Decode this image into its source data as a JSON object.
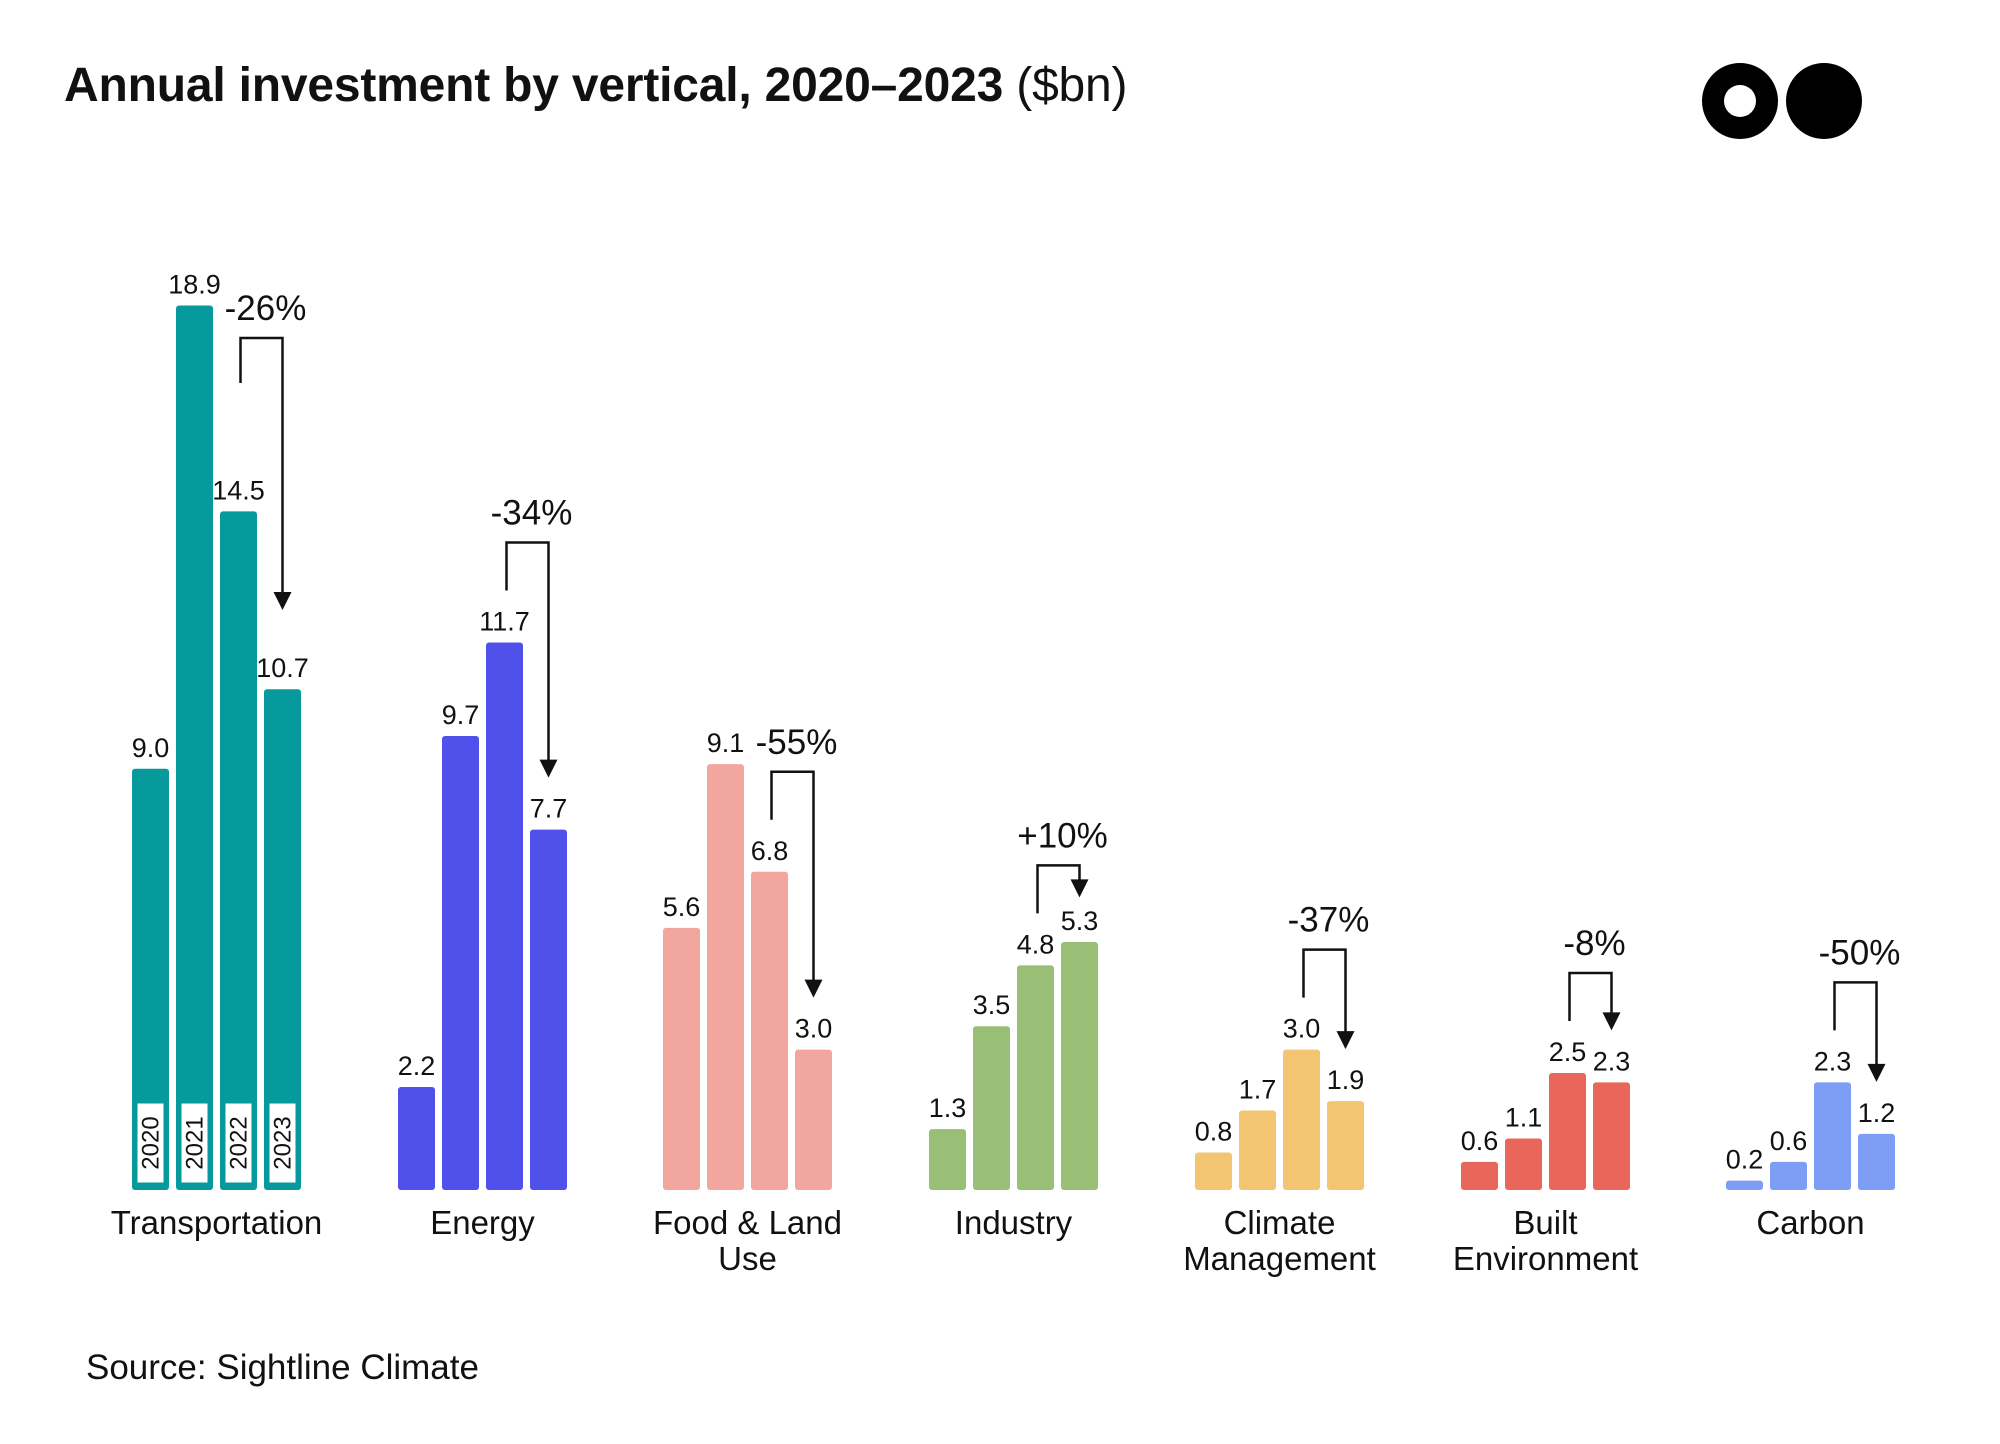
{
  "title": {
    "main": "Annual investment by vertical, 2020–2023",
    "unit": "($bn)"
  },
  "source": "Source: Sightline Climate",
  "logo": {
    "icon": "two-circles-logo"
  },
  "chart_data": {
    "type": "bar",
    "title": "Annual investment by vertical, 2020–2023 ($bn)",
    "years": [
      "2020",
      "2021",
      "2022",
      "2023"
    ],
    "groups": [
      {
        "name": "Transportation",
        "label_lines": [
          "Transportation"
        ],
        "color": "#069a9c",
        "values": [
          9.0,
          18.9,
          14.5,
          10.7
        ],
        "value_labels": [
          "9.0",
          "18.9",
          "14.5",
          "10.7"
        ],
        "change": "-26%"
      },
      {
        "name": "Energy",
        "label_lines": [
          "Energy"
        ],
        "color": "#5050ea",
        "values": [
          2.2,
          9.7,
          11.7,
          7.7
        ],
        "value_labels": [
          "2.2",
          "9.7",
          "11.7",
          "7.7"
        ],
        "change": "-34%"
      },
      {
        "name": "Food & Land Use",
        "label_lines": [
          "Food & Land",
          "Use"
        ],
        "color": "#f2a79e",
        "values": [
          5.6,
          9.1,
          6.8,
          3.0
        ],
        "value_labels": [
          "5.6",
          "9.1",
          "6.8",
          "3.0"
        ],
        "change": "-55%"
      },
      {
        "name": "Industry",
        "label_lines": [
          "Industry"
        ],
        "color": "#98bf75",
        "values": [
          1.3,
          3.5,
          4.8,
          5.3
        ],
        "value_labels": [
          "1.3",
          "3.5",
          "4.8",
          "5.3"
        ],
        "change": "+10%"
      },
      {
        "name": "Climate Management",
        "label_lines": [
          "Climate",
          "Management"
        ],
        "color": "#f3c471",
        "values": [
          0.8,
          1.7,
          3.0,
          1.9
        ],
        "value_labels": [
          "0.8",
          "1.7",
          "3.0",
          "1.9"
        ],
        "change": "-37%"
      },
      {
        "name": "Built Environment",
        "label_lines": [
          "Built",
          "Environment"
        ],
        "color": "#e9665b",
        "values": [
          0.6,
          1.1,
          2.5,
          2.3
        ],
        "value_labels": [
          "0.6",
          "1.1",
          "2.5",
          "2.3"
        ],
        "change": "-8%"
      },
      {
        "name": "Carbon",
        "label_lines": [
          "Carbon"
        ],
        "color": "#7e9df5",
        "values": [
          0.2,
          0.6,
          2.3,
          1.2
        ],
        "value_labels": [
          "0.2",
          "0.6",
          "2.3",
          "1.2"
        ],
        "change": "-50%"
      }
    ],
    "xlabel": "",
    "ylabel": "",
    "grid": false,
    "legend": "none"
  }
}
